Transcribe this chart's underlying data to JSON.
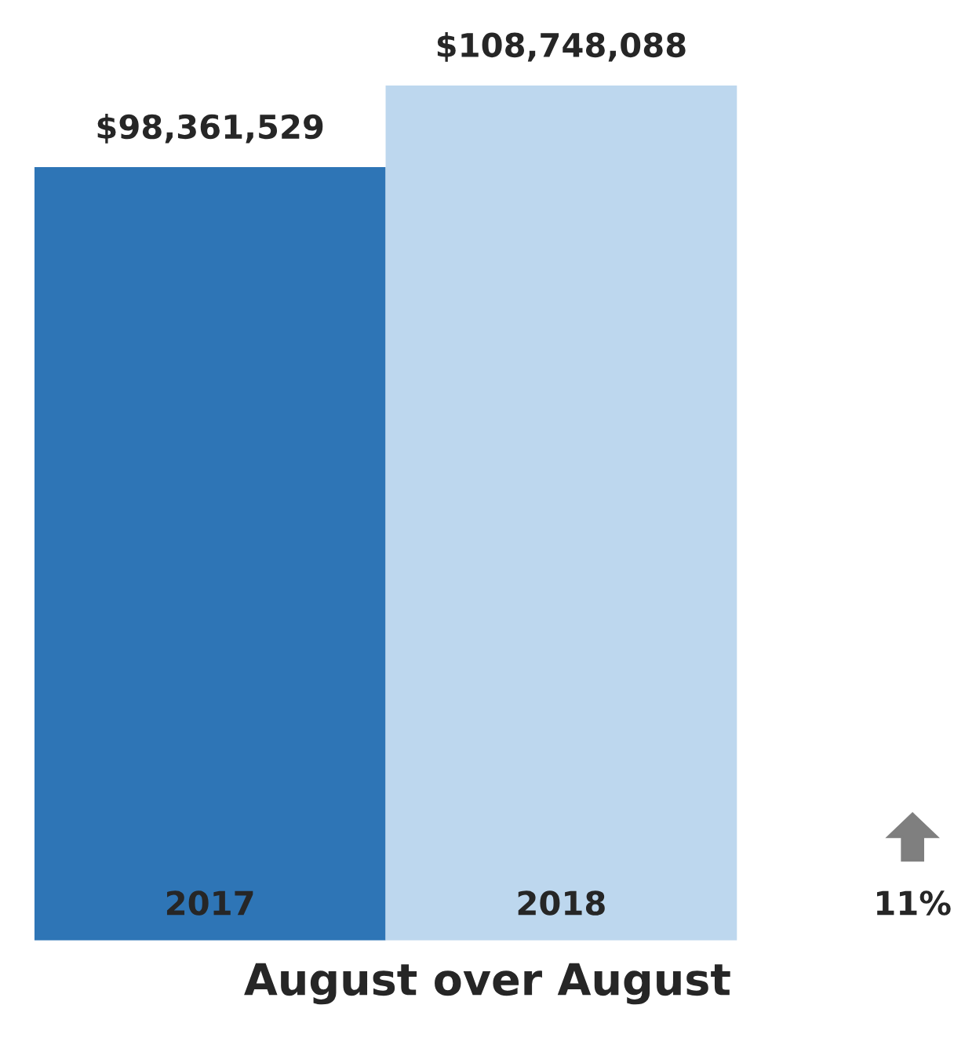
{
  "chart_data": {
    "type": "bar",
    "xlabel": "August over August",
    "categories": [
      "2017",
      "2018"
    ],
    "values": [
      98361529,
      108748088
    ],
    "colors": [
      "#2e75b6",
      "#bdd7ee"
    ],
    "value_labels": [
      "$98,361,529",
      "$108,748,088"
    ],
    "annotations": [
      "11%"
    ]
  }
}
